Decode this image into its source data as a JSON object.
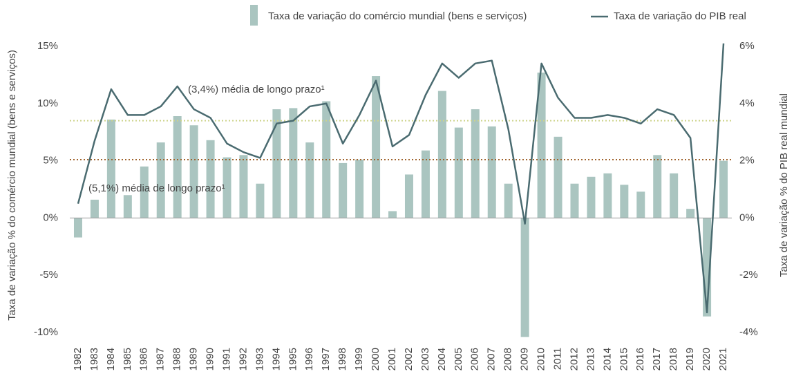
{
  "chart_data": {
    "type": "bar_line",
    "categories": [
      "1982",
      "1983",
      "1984",
      "1985",
      "1986",
      "1987",
      "1988",
      "1989",
      "1990",
      "1991",
      "1992",
      "1993",
      "1994",
      "1995",
      "1996",
      "1997",
      "1998",
      "1999",
      "2000",
      "2001",
      "2002",
      "2003",
      "2004",
      "2005",
      "2006",
      "2007",
      "2008",
      "2009",
      "2010",
      "2011",
      "2012",
      "2013",
      "2014",
      "2015",
      "2016",
      "2017",
      "2018",
      "2019",
      "2020",
      "2021"
    ],
    "series": [
      {
        "name": "Taxa de variação do comércio mundial (bens e serviços)",
        "type": "bar",
        "color": "#aac5c0",
        "axis": "y",
        "values": [
          -1.7,
          1.6,
          8.6,
          2.0,
          4.5,
          6.6,
          8.9,
          8.1,
          6.8,
          5.3,
          5.5,
          3.0,
          9.5,
          9.6,
          6.6,
          10.2,
          4.8,
          5.1,
          12.4,
          0.6,
          3.8,
          5.9,
          11.1,
          7.9,
          9.5,
          8.0,
          3.0,
          -10.4,
          12.7,
          7.1,
          3.0,
          3.6,
          3.9,
          2.9,
          2.3,
          5.5,
          3.9,
          0.8,
          -8.6,
          5.0
        ]
      },
      {
        "name": "Taxa de variação do PIB real",
        "type": "line",
        "color": "#4a6b70",
        "axis": "y2",
        "values": [
          0.5,
          2.7,
          4.5,
          3.6,
          3.6,
          3.9,
          4.6,
          3.8,
          3.5,
          2.6,
          2.3,
          2.1,
          3.3,
          3.4,
          3.9,
          4.0,
          2.6,
          3.6,
          4.8,
          2.5,
          2.9,
          4.3,
          5.4,
          4.9,
          5.4,
          5.5,
          3.1,
          -0.2,
          5.4,
          4.2,
          3.5,
          3.5,
          3.6,
          3.5,
          3.3,
          3.8,
          3.6,
          2.8,
          -3.3,
          6.1
        ]
      }
    ],
    "reference_lines": [
      {
        "value": 5.1,
        "axis": "y",
        "color": "#a0642e",
        "label": "(5,1%) média de longo prazo¹"
      },
      {
        "value": 3.4,
        "axis": "y2",
        "color": "#cdd48a",
        "label": "(3,4%) média de longo prazo¹"
      }
    ],
    "ylabel": "Taxa de variação % do comércio mundial (bens e serviços)",
    "y2label": "Taxa de variação % do PIB real mundial",
    "ylim": [
      -10.5,
      15.5
    ],
    "yticks": [
      {
        "value": -10,
        "label": "-10%"
      },
      {
        "value": -5,
        "label": "-5%"
      },
      {
        "value": 0,
        "label": "0%"
      },
      {
        "value": 5,
        "label": "5%"
      },
      {
        "value": 10,
        "label": "10%"
      },
      {
        "value": 15,
        "label": "15%"
      }
    ],
    "y2lim": [
      -4.2,
      6.2
    ],
    "y2ticks": [
      {
        "value": -4,
        "label": "-4%"
      },
      {
        "value": -2,
        "label": "-2%"
      },
      {
        "value": 0,
        "label": "0%"
      },
      {
        "value": 2,
        "label": "2%"
      },
      {
        "value": 4,
        "label": "4%"
      },
      {
        "value": 6,
        "label": "6%"
      }
    ]
  }
}
